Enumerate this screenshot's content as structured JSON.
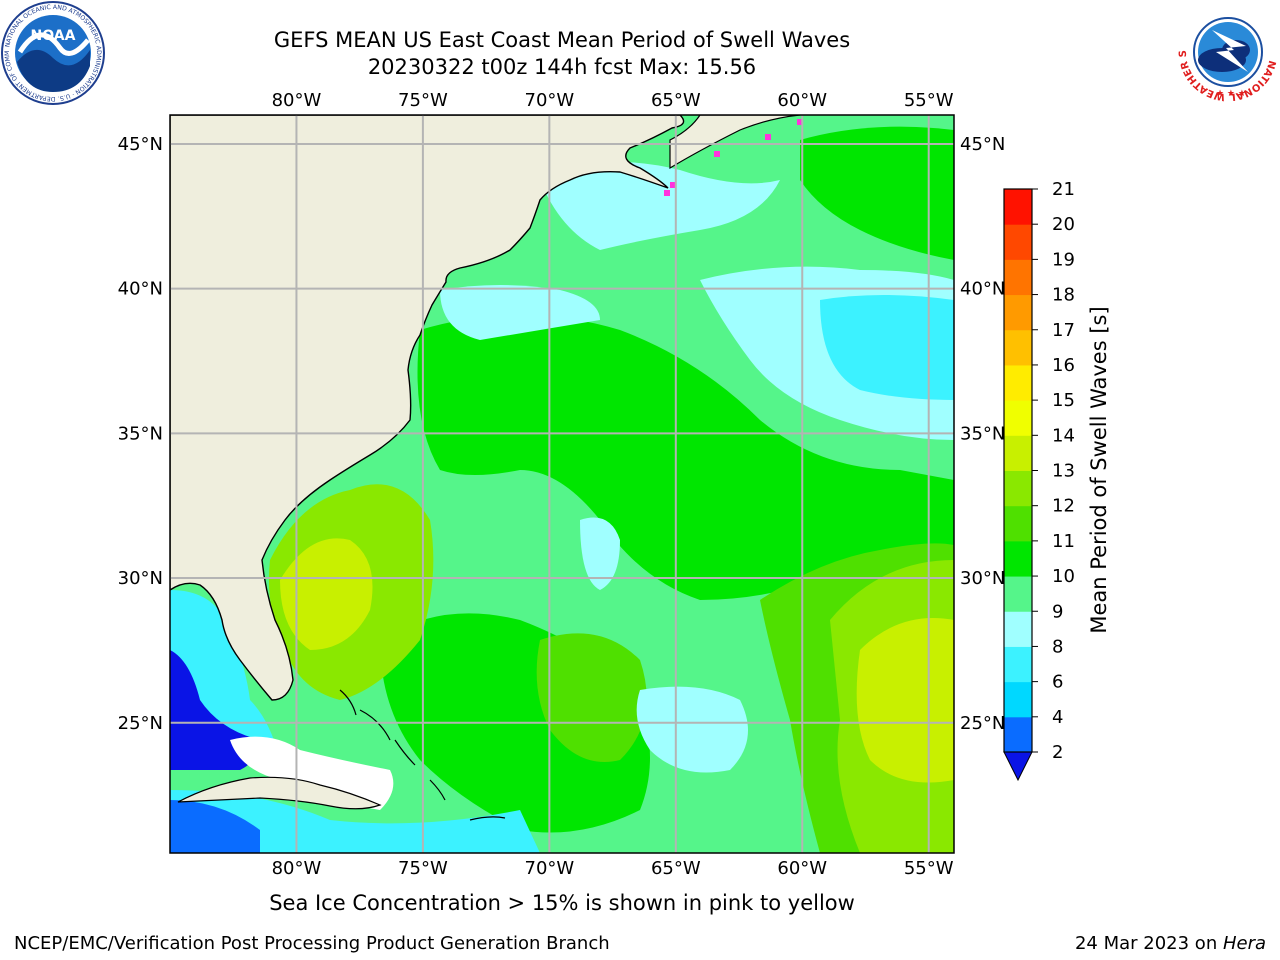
{
  "title": {
    "line1": "GEFS MEAN US East Coast Mean Period of Swell Waves",
    "line2": "20230322 t00z 144h fcst   Max: 15.56"
  },
  "subnote": "Sea Ice Concentration > 15% is shown in pink to yellow",
  "footer": {
    "left": "NCEP/EMC/Verification Post Processing Product Generation Branch",
    "date": "24 Mar 2023 on ",
    "machine": "Hera"
  },
  "logos": {
    "noaa": {
      "text": "NOAA",
      "ring": "NATIONAL OCEANIC AND ATMOSPHERIC ADMINISTRATION · U.S. DEPARTMENT OF COMMERCE"
    },
    "nws": {
      "ring": "NATIONAL WEATHER SERVICE"
    }
  },
  "map": {
    "lon_range": [
      -85,
      -54
    ],
    "lat_range": [
      20.5,
      46
    ],
    "lon_ticks": [
      -80,
      -75,
      -70,
      -65,
      -60,
      -55
    ],
    "lon_labels": [
      "80°W",
      "75°W",
      "70°W",
      "65°W",
      "60°W",
      "55°W"
    ],
    "lat_ticks": [
      25,
      30,
      35,
      40,
      45
    ],
    "lat_labels": [
      "25°N",
      "30°N",
      "35°N",
      "40°N",
      "45°N"
    ],
    "land_color": "#efeedd",
    "grid_color": "#b4b4b4"
  },
  "colorbar": {
    "label": "Mean Period of Swell Waves [s]",
    "ticks": [
      "2",
      "4",
      "6",
      "8",
      "9",
      "10",
      "11",
      "12",
      "13",
      "14",
      "15",
      "16",
      "17",
      "18",
      "19",
      "20",
      "21"
    ],
    "colors": [
      "#0a6cff",
      "#00d8ff",
      "#3cf2ff",
      "#a0ffff",
      "#55f58a",
      "#00e600",
      "#4fe000",
      "#8ae800",
      "#c8f000",
      "#f0ff00",
      "#ffec00",
      "#ffc000",
      "#ff9a00",
      "#ff7400",
      "#ff4800",
      "#ff1200"
    ],
    "extend_color": "#0a14e6"
  }
}
